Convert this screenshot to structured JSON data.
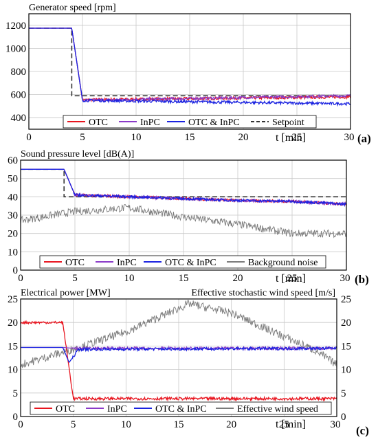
{
  "colors": {
    "otc": "#e8141e",
    "inpc": "#8a3ac8",
    "otc_inpc": "#1a22e0",
    "gray": "#7a7a7a",
    "setpoint": "#333333",
    "grid": "#c8c8c8"
  },
  "chart_data": [
    {
      "id": "a",
      "type": "line",
      "tag": "(a)",
      "title": "Generator speed [rpm]",
      "xlabel": "t [min]",
      "xlim": [
        0,
        30
      ],
      "ylim": [
        300,
        1300
      ],
      "xticks": [
        0,
        5,
        10,
        15,
        20,
        25,
        30
      ],
      "xtick_labels": [
        "0",
        "5",
        "10",
        "15",
        "20",
        "25",
        "30"
      ],
      "yticks": [
        400,
        600,
        800,
        1000,
        1200
      ],
      "ytick_labels": [
        "400",
        "600",
        "800",
        "1000",
        "1200"
      ],
      "legend": [
        "OTC",
        "InPC",
        "OTC & InPC",
        "Setpoint"
      ],
      "series": [
        {
          "name": "OTC",
          "points": [
            [
              0,
              1175
            ],
            [
              4,
              1175
            ],
            [
              5,
              555
            ],
            [
              30,
              580
            ]
          ]
        },
        {
          "name": "InPC",
          "points": [
            [
              0,
              1175
            ],
            [
              4,
              1175
            ],
            [
              5,
              550
            ],
            [
              30,
              590
            ]
          ]
        },
        {
          "name": "OTC & InPC",
          "points": [
            [
              0,
              1175
            ],
            [
              4,
              1175
            ],
            [
              5,
              550
            ],
            [
              30,
              520
            ]
          ]
        },
        {
          "name": "Setpoint",
          "points": [
            [
              0,
              1175
            ],
            [
              4,
              1175
            ],
            [
              4,
              590
            ],
            [
              30,
              590
            ]
          ]
        }
      ]
    },
    {
      "id": "b",
      "type": "line",
      "tag": "(b)",
      "title": "Sound pressure level [dB(A)]",
      "xlabel": "t [min]",
      "xlim": [
        0,
        30
      ],
      "ylim": [
        0,
        60
      ],
      "xticks": [
        0,
        5,
        10,
        15,
        20,
        25,
        30
      ],
      "xtick_labels": [
        "0",
        "5",
        "10",
        "15",
        "20",
        "25",
        "30"
      ],
      "yticks": [
        0,
        10,
        20,
        30,
        40,
        50,
        60
      ],
      "ytick_labels": [
        "0",
        "10",
        "20",
        "30",
        "40",
        "50",
        "60"
      ],
      "legend": [
        "OTC",
        "InPC",
        "OTC & InPC",
        "Background noise"
      ],
      "series": [
        {
          "name": "OTC",
          "points": [
            [
              0,
              55
            ],
            [
              4,
              55
            ],
            [
              5,
              41
            ],
            [
              10,
              40
            ],
            [
              15,
              39
            ],
            [
              20,
              38
            ],
            [
              25,
              37.5
            ],
            [
              30,
              36
            ]
          ]
        },
        {
          "name": "InPC",
          "points": [
            [
              0,
              55
            ],
            [
              4,
              55
            ],
            [
              5,
              41
            ],
            [
              10,
              40
            ],
            [
              15,
              39
            ],
            [
              20,
              38
            ],
            [
              25,
              37.5
            ],
            [
              30,
              36
            ]
          ]
        },
        {
          "name": "OTC & InPC",
          "points": [
            [
              0,
              55
            ],
            [
              4,
              55
            ],
            [
              5,
              41
            ],
            [
              10,
              40
            ],
            [
              15,
              39
            ],
            [
              20,
              38
            ],
            [
              25,
              37.5
            ],
            [
              30,
              36
            ]
          ]
        },
        {
          "name": "Setpoint",
          "points": [
            [
              0,
              55
            ],
            [
              4,
              55
            ],
            [
              4,
              40
            ],
            [
              30,
              40
            ]
          ]
        },
        {
          "name": "Background noise",
          "points": [
            [
              0,
              27
            ],
            [
              5,
              32
            ],
            [
              10,
              34
            ],
            [
              15,
              29
            ],
            [
              20,
              25
            ],
            [
              25,
              20
            ],
            [
              30,
              20
            ]
          ]
        }
      ]
    },
    {
      "id": "c",
      "type": "line",
      "tag": "(c)",
      "title": "Electrical power [MW]",
      "title_right": "Effective stochastic wind speed [m/s]",
      "xlabel": "t [min]",
      "xlim": [
        0,
        30
      ],
      "ylim": [
        0,
        25
      ],
      "xticks": [
        0,
        5,
        10,
        15,
        20,
        25,
        30
      ],
      "xtick_labels": [
        "0",
        "5",
        "10",
        "15",
        "20",
        "25",
        "30"
      ],
      "yticks": [
        0,
        5,
        10,
        15,
        20,
        25
      ],
      "ytick_labels": [
        "0",
        "5",
        "10",
        "15",
        "20",
        "25"
      ],
      "yticks_right": [
        0,
        5,
        10,
        15,
        20,
        25
      ],
      "ytick_labels_right": [
        "0",
        "5",
        "10",
        "15",
        "20",
        "25"
      ],
      "legend": [
        "OTC",
        "InPC",
        "OTC & InPC",
        "Effective wind speed"
      ],
      "series": [
        {
          "name": "OTC",
          "points": [
            [
              0,
              20
            ],
            [
              4,
              20
            ],
            [
              5,
              3.8
            ],
            [
              30,
              3.8
            ]
          ]
        },
        {
          "name": "InPC",
          "points": [
            [
              0,
              14.7
            ],
            [
              4,
              14.7
            ],
            [
              5,
              14.5
            ],
            [
              30,
              14.5
            ]
          ]
        },
        {
          "name": "OTC & InPC",
          "points": [
            [
              0,
              14.7
            ],
            [
              4,
              14.7
            ],
            [
              4.6,
              11.5
            ],
            [
              5.5,
              14.3
            ],
            [
              30,
              14.5
            ]
          ]
        },
        {
          "name": "Effective wind speed",
          "points": [
            [
              0,
              11
            ],
            [
              3,
              13
            ],
            [
              6,
              15
            ],
            [
              10,
              18
            ],
            [
              13,
              21
            ],
            [
              16,
              24
            ],
            [
              20,
              22
            ],
            [
              24,
              18
            ],
            [
              28,
              14
            ],
            [
              30,
              11
            ]
          ]
        }
      ]
    }
  ]
}
